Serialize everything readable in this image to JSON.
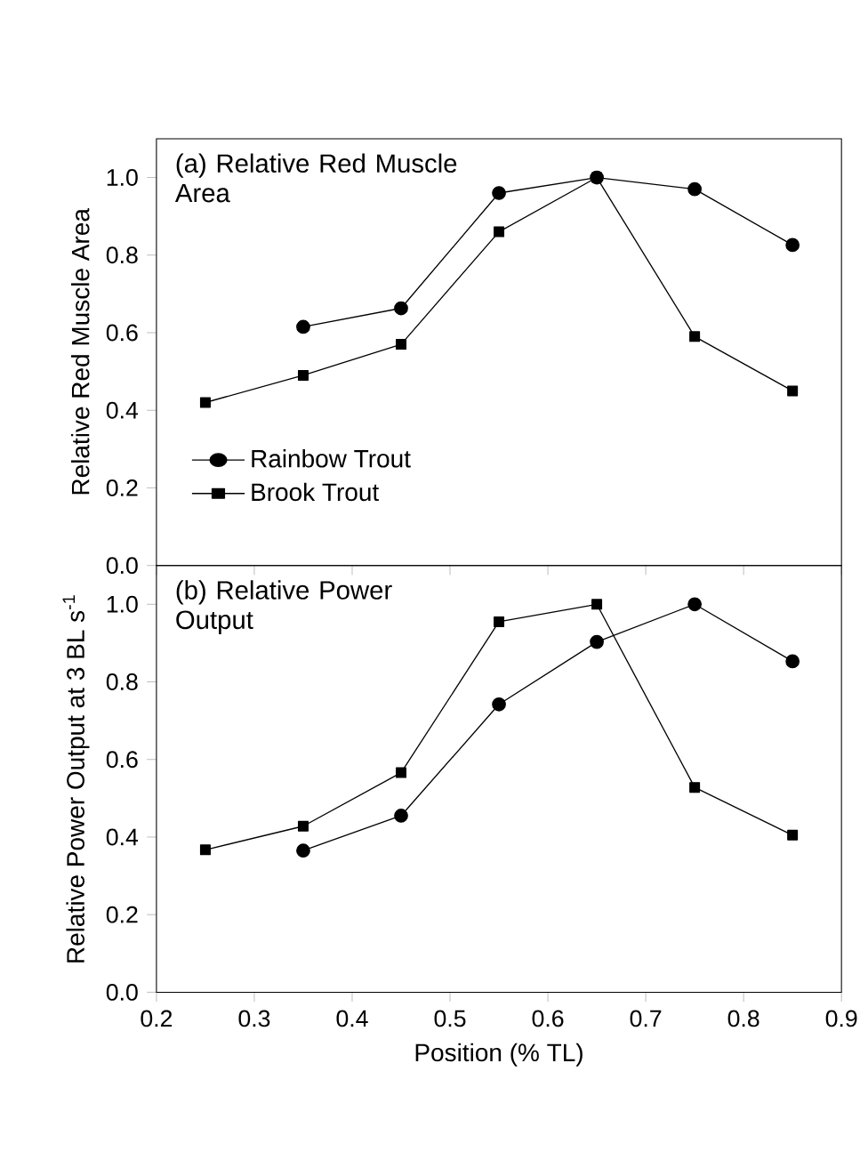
{
  "chart_data": [
    {
      "type": "line",
      "title": "(a) Relative Red Muscle Area",
      "ylabel": "Relative Red Muscle Area",
      "xlim": [
        0.2,
        0.9
      ],
      "xticks": [
        0.2,
        0.3,
        0.4,
        0.5,
        0.6,
        0.7,
        0.8,
        0.9
      ],
      "ylim": [
        0,
        1.1
      ],
      "yticks": [
        {
          "value": 0,
          "label": "0.0"
        },
        {
          "value": 0.2,
          "label": "0.2"
        },
        {
          "value": 0.4,
          "label": "0.4"
        },
        {
          "value": 0.6,
          "label": "0.6"
        },
        {
          "value": 0.8,
          "label": "0.8"
        },
        {
          "value": 1.0,
          "label": "1.0"
        }
      ],
      "tick_labels": "y",
      "legend": "bottom left",
      "grid": false,
      "series": [
        {
          "name": "Rainbow Trout",
          "color": "#000000",
          "marker": "circle",
          "x": [
            0.35,
            0.45,
            0.55,
            0.65,
            0.75,
            0.85
          ],
          "values": [
            0.615,
            0.663,
            0.96,
            1.0,
            0.97,
            0.826
          ]
        },
        {
          "name": "Brook Trout",
          "color": "#000000",
          "marker": "square",
          "x": [
            0.25,
            0.35,
            0.45,
            0.55,
            0.65,
            0.75,
            0.85
          ],
          "values": [
            0.42,
            0.49,
            0.57,
            0.86,
            1.0,
            0.59,
            0.45
          ]
        }
      ]
    },
    {
      "type": "line",
      "title": "(b) Relative Power Output",
      "xlabel": "Position (% TL)",
      "ylabel": "Relative Power Output at 3 BL s$^{-1}$",
      "xlim": [
        0.2,
        0.9
      ],
      "xticks": [
        0.2,
        0.3,
        0.4,
        0.5,
        0.6,
        0.7,
        0.8,
        0.9
      ],
      "ylim": [
        0,
        1.1
      ],
      "yticks": [
        {
          "value": 0,
          "label": "0.0"
        },
        {
          "value": 0.2,
          "label": "0.2"
        },
        {
          "value": 0.4,
          "label": "0.4"
        },
        {
          "value": 0.6,
          "label": "0.6"
        },
        {
          "value": 0.8,
          "label": "0.8"
        },
        {
          "value": 1.0,
          "label": "1.0"
        }
      ],
      "legend": false,
      "grid": false,
      "series": [
        {
          "color": "#000000",
          "marker": "circle",
          "x": [
            0.35,
            0.45,
            0.55,
            0.65,
            0.75,
            0.85
          ],
          "values": [
            0.365,
            0.455,
            0.742,
            0.903,
            1.0,
            0.853
          ]
        },
        {
          "color": "#000000",
          "marker": "square",
          "x": [
            0.25,
            0.35,
            0.45,
            0.55,
            0.65,
            0.75,
            0.85
          ],
          "values": [
            0.367,
            0.428,
            0.566,
            0.955,
            1.0,
            0.528,
            0.405
          ]
        }
      ]
    }
  ]
}
